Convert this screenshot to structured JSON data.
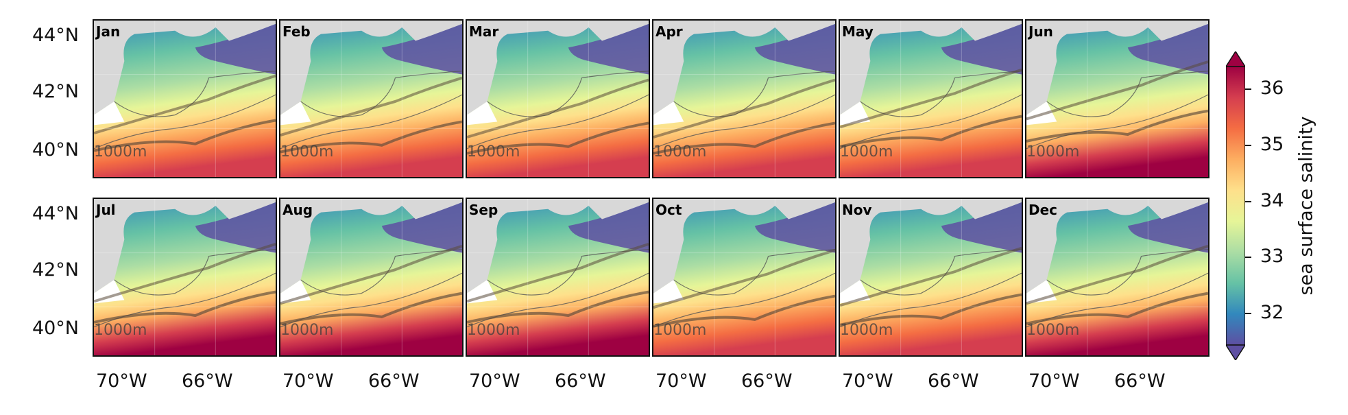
{
  "months": [
    "Jan",
    "Feb",
    "Mar",
    "Apr",
    "May",
    "Jun",
    "Jul",
    "Aug",
    "Sep",
    "Oct",
    "Nov",
    "Dec"
  ],
  "isobath_label": "1000m",
  "y_ticks": [
    "44°N",
    "42°N",
    "40°N"
  ],
  "x_ticks": [
    "70°W",
    "66°W"
  ],
  "colorbar": {
    "label": "sea surface salinity",
    "ticks": [
      "36",
      "35",
      "34",
      "33",
      "32"
    ],
    "range": [
      31.5,
      36.5
    ],
    "extend": "both",
    "colormap": "Spectral_r",
    "colors": [
      "#5e4fa2",
      "#3288bd",
      "#66c2a5",
      "#abdda4",
      "#e6f598",
      "#fee08b",
      "#fdae61",
      "#f46d43",
      "#d53e4f",
      "#9e0142"
    ]
  },
  "land_color": "#d8d8d8",
  "no_data_color": "#ffffff"
}
